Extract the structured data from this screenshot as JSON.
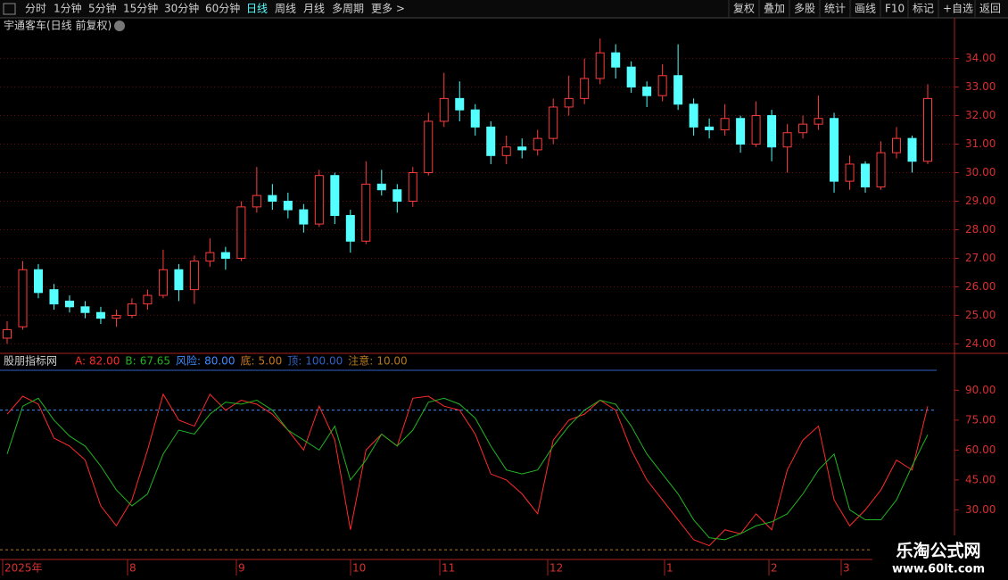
{
  "toolbar": {
    "left": [
      "分时",
      "1分钟",
      "5分钟",
      "15分钟",
      "30分钟",
      "60分钟",
      "日线",
      "周线",
      "月线",
      "多周期",
      "更多 >"
    ],
    "active": "日线",
    "right": [
      "复权",
      "叠加",
      "多股",
      "统计",
      "画线",
      "F10",
      "标记",
      "+自选",
      "返回"
    ]
  },
  "chart_data": [
    {
      "type": "candlestick",
      "title": "宇通客车(日线 前复权)",
      "up_color": "#ff3c3c",
      "down_color": "#54ffff",
      "grid": true,
      "ylim": [
        23.7,
        34.8
      ],
      "yticks": [
        {
          "value": 24,
          "label": "24.00"
        },
        {
          "value": 25,
          "label": "25.00"
        },
        {
          "value": 26,
          "label": "26.00"
        },
        {
          "value": 27,
          "label": "27.00"
        },
        {
          "value": 28,
          "label": "28.00"
        },
        {
          "value": 29,
          "label": "29.00"
        },
        {
          "value": 30,
          "label": "30.00"
        },
        {
          "value": 31,
          "label": "31.00"
        },
        {
          "value": 32,
          "label": "32.00"
        },
        {
          "value": 33,
          "label": "33.00"
        },
        {
          "value": 34,
          "label": "34.00"
        }
      ],
      "ohlc": [
        [
          24.2,
          24.8,
          24.0,
          24.5
        ],
        [
          24.6,
          26.9,
          24.5,
          26.6
        ],
        [
          26.6,
          26.8,
          25.6,
          25.8
        ],
        [
          25.9,
          26.1,
          25.2,
          25.4
        ],
        [
          25.5,
          25.7,
          25.1,
          25.3
        ],
        [
          25.3,
          25.5,
          24.9,
          25.1
        ],
        [
          25.1,
          25.3,
          24.7,
          24.9
        ],
        [
          24.9,
          25.2,
          24.6,
          25.0
        ],
        [
          25.0,
          25.6,
          24.9,
          25.4
        ],
        [
          25.4,
          25.9,
          25.2,
          25.7
        ],
        [
          25.7,
          27.3,
          25.6,
          26.6
        ],
        [
          26.6,
          26.8,
          25.5,
          25.9
        ],
        [
          25.9,
          27.1,
          25.4,
          26.9
        ],
        [
          26.9,
          27.7,
          26.7,
          27.2
        ],
        [
          27.2,
          27.4,
          26.6,
          27.0
        ],
        [
          27.0,
          29.0,
          26.9,
          28.8
        ],
        [
          28.8,
          30.2,
          28.6,
          29.2
        ],
        [
          29.2,
          29.6,
          28.7,
          29.0
        ],
        [
          29.0,
          29.3,
          28.4,
          28.7
        ],
        [
          28.7,
          28.9,
          27.9,
          28.2
        ],
        [
          28.2,
          30.1,
          28.1,
          29.9
        ],
        [
          29.9,
          30.0,
          28.2,
          28.5
        ],
        [
          28.5,
          28.7,
          27.2,
          27.6
        ],
        [
          27.6,
          30.4,
          27.5,
          29.6
        ],
        [
          29.6,
          30.1,
          29.2,
          29.4
        ],
        [
          29.4,
          29.6,
          28.6,
          29.0
        ],
        [
          29.0,
          30.2,
          28.8,
          30.0
        ],
        [
          30.0,
          32.1,
          29.9,
          31.8
        ],
        [
          31.8,
          33.5,
          31.6,
          32.6
        ],
        [
          32.6,
          33.2,
          31.8,
          32.2
        ],
        [
          32.2,
          32.4,
          31.3,
          31.6
        ],
        [
          31.6,
          31.8,
          30.3,
          30.6
        ],
        [
          30.6,
          31.3,
          30.3,
          30.9
        ],
        [
          30.9,
          31.2,
          30.5,
          30.8
        ],
        [
          30.8,
          31.5,
          30.6,
          31.2
        ],
        [
          31.2,
          32.6,
          31.0,
          32.3
        ],
        [
          32.3,
          33.4,
          32.0,
          32.6
        ],
        [
          32.6,
          34.0,
          32.4,
          33.3
        ],
        [
          33.3,
          34.7,
          33.1,
          34.2
        ],
        [
          34.2,
          34.5,
          33.3,
          33.7
        ],
        [
          33.7,
          33.9,
          32.8,
          33.0
        ],
        [
          33.0,
          33.2,
          32.3,
          32.7
        ],
        [
          32.7,
          33.8,
          32.5,
          33.4
        ],
        [
          33.4,
          34.5,
          32.2,
          32.4
        ],
        [
          32.4,
          32.6,
          31.3,
          31.6
        ],
        [
          31.6,
          31.9,
          31.2,
          31.5
        ],
        [
          31.5,
          32.4,
          31.3,
          31.9
        ],
        [
          31.9,
          32.0,
          30.7,
          31.0
        ],
        [
          31.0,
          32.5,
          30.9,
          32.0
        ],
        [
          32.0,
          32.2,
          30.4,
          30.9
        ],
        [
          30.9,
          31.7,
          30.0,
          31.4
        ],
        [
          31.4,
          32.0,
          31.2,
          31.7
        ],
        [
          31.7,
          32.7,
          31.5,
          31.9
        ],
        [
          31.9,
          32.1,
          29.3,
          29.7
        ],
        [
          29.7,
          30.6,
          29.4,
          30.3
        ],
        [
          30.3,
          30.4,
          29.3,
          29.5
        ],
        [
          29.5,
          31.1,
          29.4,
          30.7
        ],
        [
          30.7,
          31.6,
          30.5,
          31.2
        ],
        [
          31.2,
          31.3,
          30.0,
          30.4
        ],
        [
          30.4,
          33.1,
          30.3,
          32.6
        ]
      ]
    },
    {
      "type": "line",
      "title": "股朋指标网",
      "ylim": [
        6,
        100
      ],
      "yticks": [
        {
          "value": 30,
          "label": "30.00"
        },
        {
          "value": 45,
          "label": "45.00"
        },
        {
          "value": 60,
          "label": "60.00"
        },
        {
          "value": 75,
          "label": "75.00"
        },
        {
          "value": 90,
          "label": "90.00"
        }
      ],
      "series": [
        {
          "name": "A:",
          "label": "82.00",
          "color": "#ff2a2a",
          "values": [
            78,
            87,
            83,
            66,
            62,
            55,
            32,
            22,
            35,
            60,
            88,
            75,
            72,
            88,
            80,
            85,
            83,
            78,
            70,
            60,
            82,
            65,
            20,
            60,
            68,
            62,
            86,
            87,
            82,
            80,
            68,
            48,
            45,
            38,
            28,
            65,
            75,
            78,
            85,
            80,
            60,
            45,
            35,
            25,
            15,
            12,
            20,
            18,
            28,
            20,
            50,
            65,
            72,
            35,
            22,
            30,
            40,
            55,
            50,
            82
          ]
        },
        {
          "name": "B:",
          "label": "67.65",
          "color": "#22b422",
          "values": [
            58,
            82,
            86,
            75,
            67,
            62,
            52,
            40,
            32,
            38,
            58,
            70,
            68,
            78,
            84,
            83,
            85,
            80,
            70,
            65,
            60,
            72,
            45,
            55,
            68,
            62,
            70,
            84,
            86,
            83,
            76,
            62,
            50,
            48,
            50,
            62,
            72,
            80,
            85,
            83,
            72,
            58,
            48,
            38,
            25,
            16,
            15,
            18,
            22,
            24,
            28,
            38,
            50,
            58,
            30,
            25,
            25,
            35,
            52,
            67.65
          ]
        }
      ],
      "levels": [
        {
          "name": "风险:",
          "value": 80,
          "label": "80.00",
          "color": "#3c8cff",
          "dash": true
        },
        {
          "name": "底:",
          "value": 5,
          "label": "5.00",
          "color": "#c87820",
          "dash": true
        },
        {
          "name": "顶:",
          "value": 100,
          "label": "100.00",
          "color": "#2f62c4",
          "dash": false
        },
        {
          "name": "注意:",
          "value": 10,
          "label": "10.00",
          "color": "#b4781e",
          "dash": true
        }
      ]
    }
  ],
  "x_axis_labels": [
    "2025年",
    "8",
    "9",
    "10",
    "11",
    "12",
    "1",
    "2",
    "3"
  ],
  "watermark": {
    "title": "乐淘公式网",
    "url": "www.60lt.com"
  }
}
